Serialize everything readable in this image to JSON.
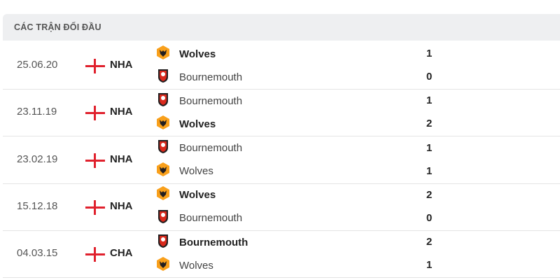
{
  "header": {
    "title": "CÁC TRẬN ĐỐI ĐẦU"
  },
  "colors": {
    "wolves": "#f9a01b",
    "bournemouth": "#da291c",
    "flag": "#e0212d"
  },
  "matches": [
    {
      "date": "25.06.20",
      "competition": "NHA",
      "home": {
        "name": "Wolves",
        "icon": "wolves-crest",
        "score": "1",
        "winner": true
      },
      "away": {
        "name": "Bournemouth",
        "icon": "bournemouth-crest",
        "score": "0",
        "winner": false
      }
    },
    {
      "date": "23.11.19",
      "competition": "NHA",
      "home": {
        "name": "Bournemouth",
        "icon": "bournemouth-crest",
        "score": "1",
        "winner": false
      },
      "away": {
        "name": "Wolves",
        "icon": "wolves-crest",
        "score": "2",
        "winner": true
      }
    },
    {
      "date": "23.02.19",
      "competition": "NHA",
      "home": {
        "name": "Bournemouth",
        "icon": "bournemouth-crest",
        "score": "1",
        "winner": false
      },
      "away": {
        "name": "Wolves",
        "icon": "wolves-crest",
        "score": "1",
        "winner": false
      }
    },
    {
      "date": "15.12.18",
      "competition": "NHA",
      "home": {
        "name": "Wolves",
        "icon": "wolves-crest",
        "score": "2",
        "winner": true
      },
      "away": {
        "name": "Bournemouth",
        "icon": "bournemouth-crest",
        "score": "0",
        "winner": false
      }
    },
    {
      "date": "04.03.15",
      "competition": "CHA",
      "home": {
        "name": "Bournemouth",
        "icon": "bournemouth-crest",
        "score": "2",
        "winner": true
      },
      "away": {
        "name": "Wolves",
        "icon": "wolves-crest",
        "score": "1",
        "winner": false
      }
    }
  ]
}
